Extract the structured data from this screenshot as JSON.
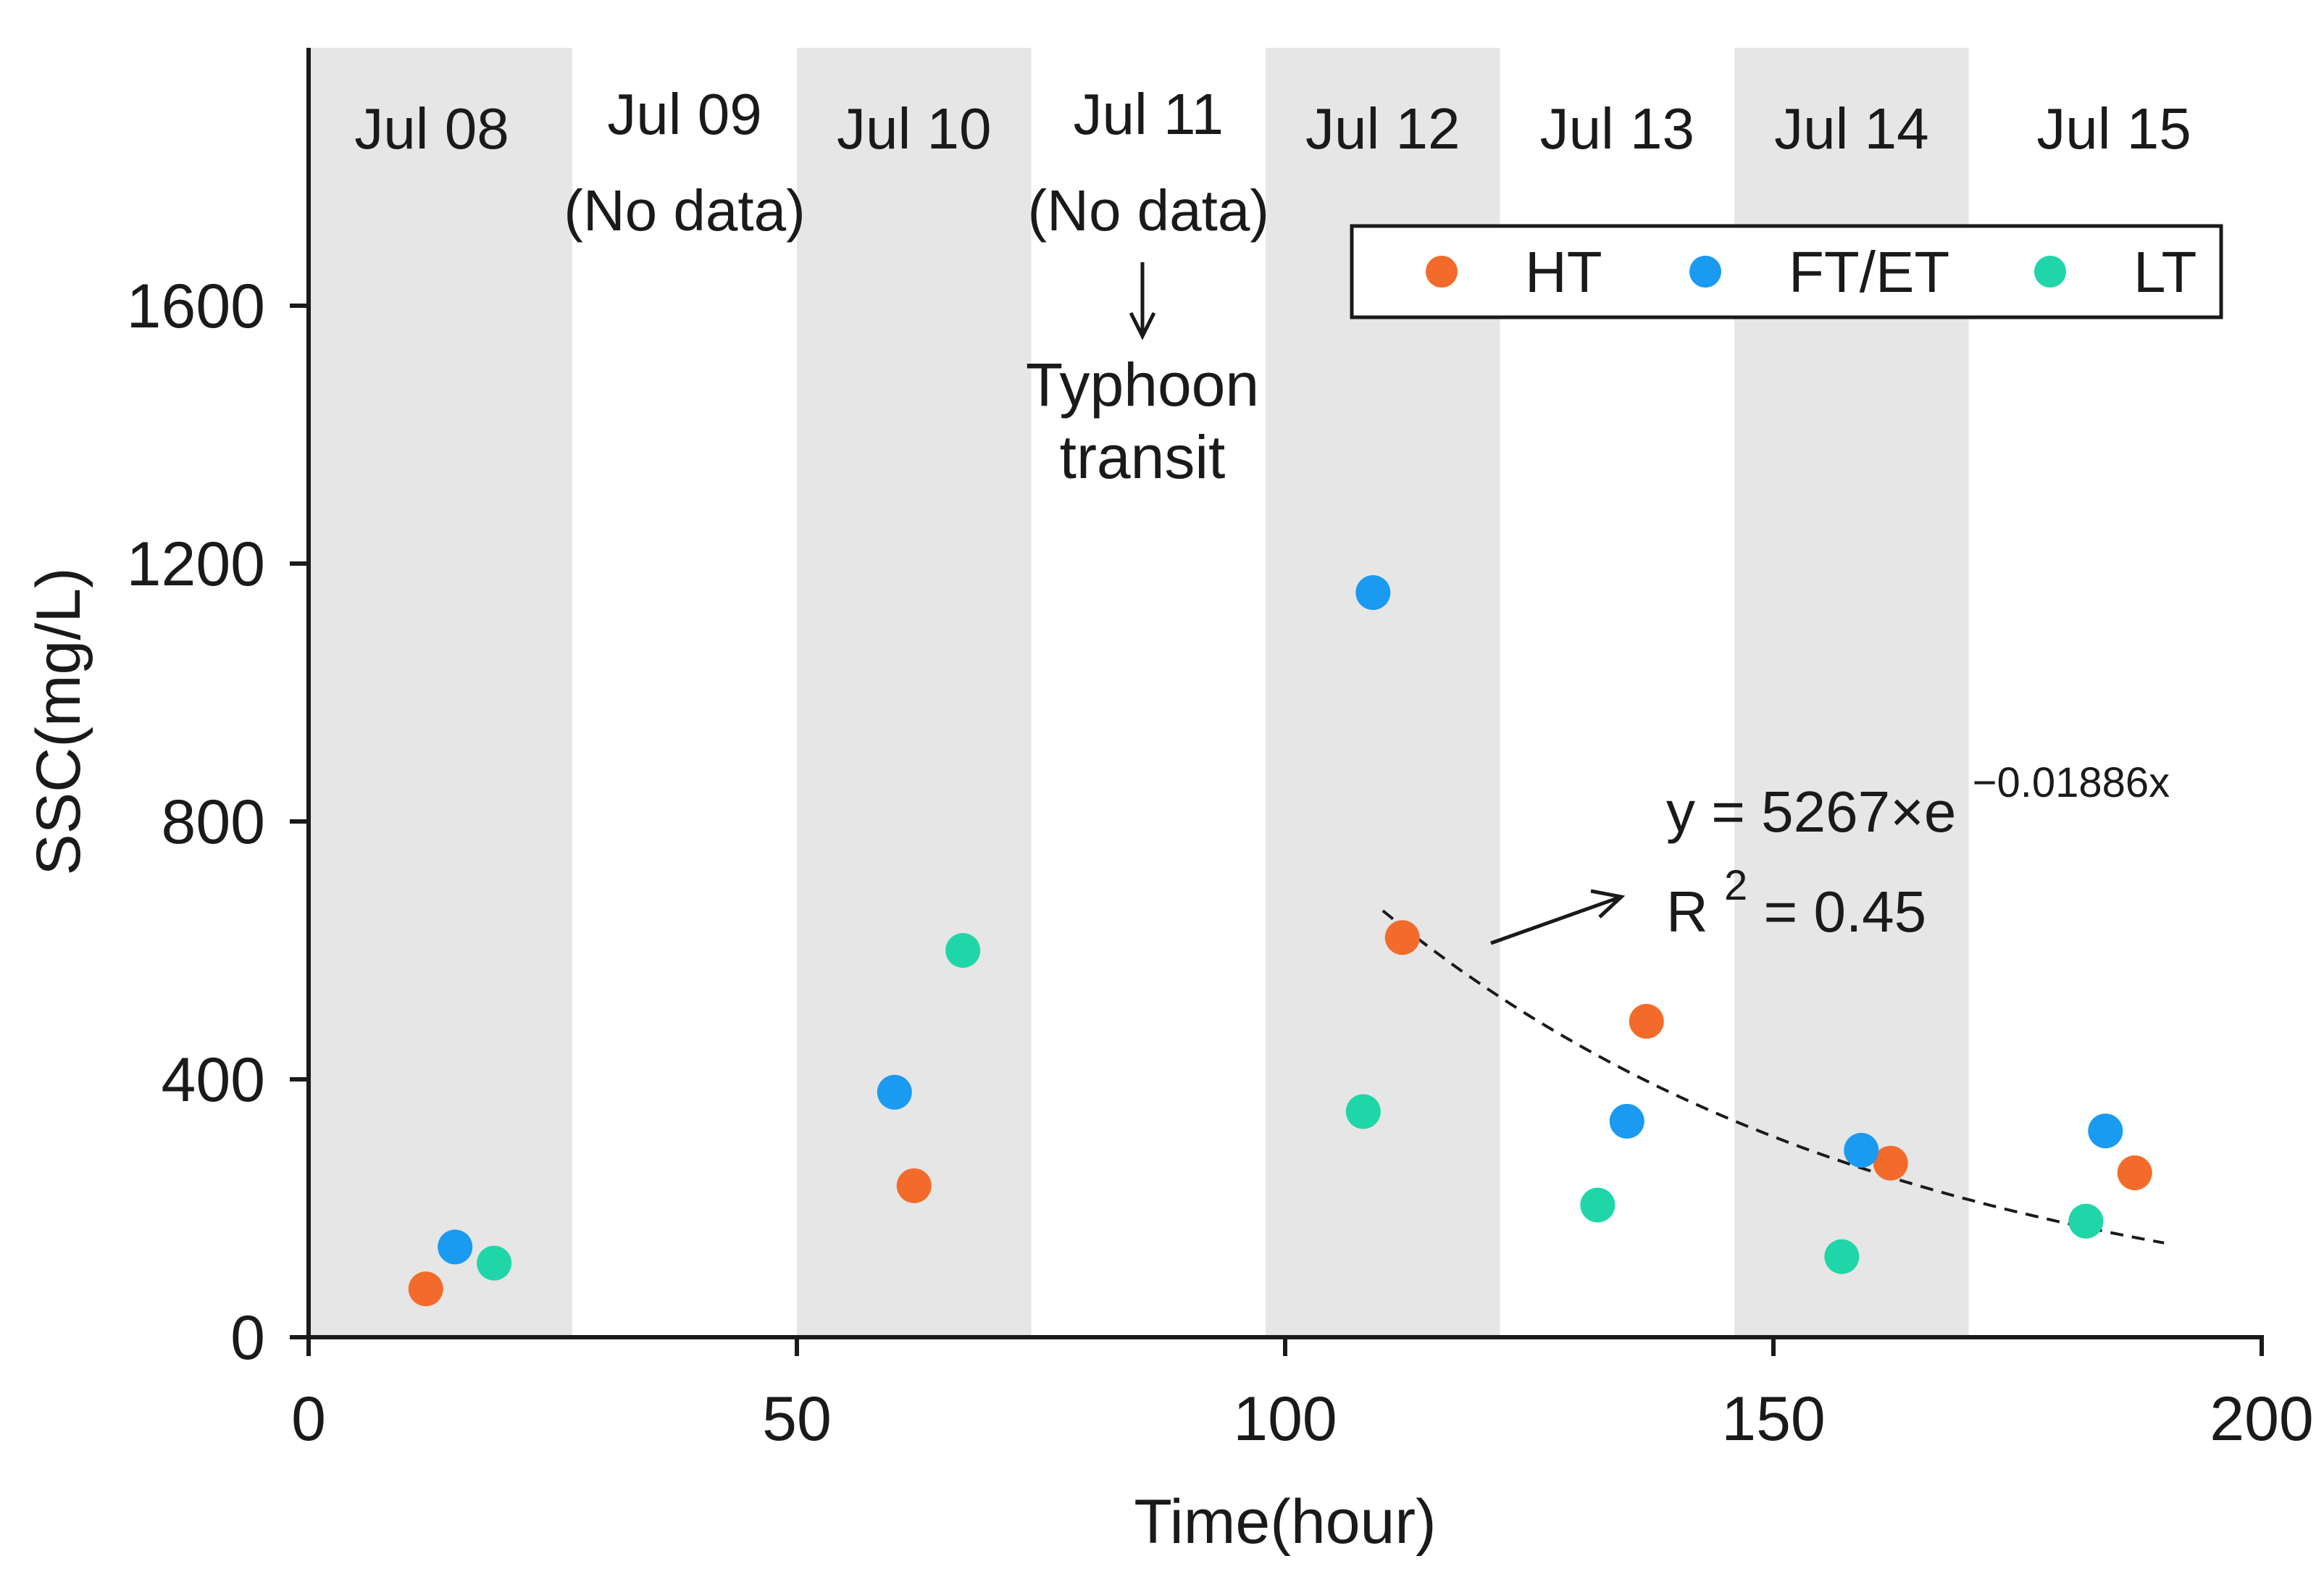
{
  "chart_data": {
    "type": "scatter",
    "xlabel": "Time(hour)",
    "ylabel": "SSC(mg/L)",
    "xlim": [
      0,
      200
    ],
    "ylim": [
      0,
      2000
    ],
    "xticks": [
      0,
      50,
      100,
      150,
      200
    ],
    "yticks": [
      0,
      400,
      800,
      1200,
      1600
    ],
    "grid": false,
    "legend_position": "top-right",
    "day_bands": [
      {
        "label": "Jul 08",
        "note": "",
        "start": 0,
        "end": 27,
        "shaded": true
      },
      {
        "label": "Jul 09",
        "note": "(No data)",
        "start": 27,
        "end": 50,
        "shaded": false
      },
      {
        "label": "Jul 10",
        "note": "",
        "start": 50,
        "end": 74,
        "shaded": true
      },
      {
        "label": "Jul 11",
        "note": "(No data)",
        "start": 74,
        "end": 98,
        "shaded": false
      },
      {
        "label": "Jul 12",
        "note": "",
        "start": 98,
        "end": 122,
        "shaded": true
      },
      {
        "label": "Jul 13",
        "note": "",
        "start": 122,
        "end": 146,
        "shaded": false
      },
      {
        "label": "Jul 14",
        "note": "",
        "start": 146,
        "end": 170,
        "shaded": true
      },
      {
        "label": "Jul 15",
        "note": "",
        "start": 170,
        "end": 200,
        "shaded": false
      }
    ],
    "series": [
      {
        "name": "HT",
        "color": "#f36b2b",
        "points": [
          [
            12,
            75
          ],
          [
            62,
            235
          ],
          [
            112,
            620
          ],
          [
            137,
            490
          ],
          [
            162,
            270
          ],
          [
            187,
            255
          ]
        ]
      },
      {
        "name": "FT/ET",
        "color": "#1a9af0",
        "points": [
          [
            15,
            140
          ],
          [
            60,
            380
          ],
          [
            109,
            1155
          ],
          [
            135,
            335
          ],
          [
            159,
            290
          ],
          [
            184,
            320
          ]
        ]
      },
      {
        "name": "LT",
        "color": "#1fd6a8",
        "points": [
          [
            19,
            115
          ],
          [
            67,
            600
          ],
          [
            108,
            350
          ],
          [
            132,
            205
          ],
          [
            157,
            125
          ],
          [
            182,
            180
          ]
        ]
      }
    ],
    "fit": {
      "a": 5267,
      "b": -0.01886,
      "x_start": 110,
      "x_end": 190,
      "r2": 0.45
    },
    "annotations": {
      "event_label_1": "Typhoon",
      "event_label_2": "transit",
      "eq_prefix": "y = 5267×e",
      "eq_exponent": "−0.01886x",
      "r2_prefix": "R",
      "r2_sup": "2",
      "r2_suffix": " = 0.45"
    }
  }
}
